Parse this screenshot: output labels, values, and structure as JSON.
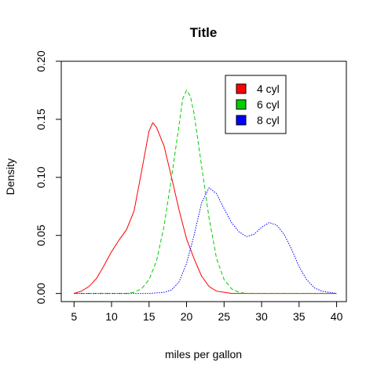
{
  "chart_data": {
    "type": "line",
    "title": "Title",
    "xlabel": "miles per gallon",
    "ylabel": "Density",
    "xlim": [
      3.3,
      41.3
    ],
    "ylim": [
      -0.007,
      0.2
    ],
    "x_ticks": [
      5,
      10,
      15,
      20,
      25,
      30,
      35,
      40
    ],
    "x_tick_labels": [
      "5",
      "10",
      "15",
      "20",
      "25",
      "30",
      "35",
      "40"
    ],
    "y_ticks": [
      0.0,
      0.05,
      0.1,
      0.15,
      0.2
    ],
    "y_tick_labels": [
      "0.00",
      "0.05",
      "0.10",
      "0.15",
      "0.20"
    ],
    "grid": false,
    "legend_position": "top-right",
    "series": [
      {
        "name": "4 cyl",
        "color": "#ff0000",
        "dash": "solid",
        "points": [
          [
            5,
            0
          ],
          [
            6,
            0.002
          ],
          [
            7,
            0.006
          ],
          [
            8,
            0.013
          ],
          [
            9,
            0.024
          ],
          [
            10,
            0.036
          ],
          [
            11,
            0.046
          ],
          [
            12,
            0.055
          ],
          [
            13,
            0.071
          ],
          [
            14,
            0.105
          ],
          [
            15,
            0.14
          ],
          [
            15.5,
            0.147
          ],
          [
            16,
            0.143
          ],
          [
            17,
            0.127
          ],
          [
            18,
            0.1
          ],
          [
            19,
            0.072
          ],
          [
            20,
            0.047
          ],
          [
            21,
            0.03
          ],
          [
            22,
            0.015
          ],
          [
            23,
            0.006
          ],
          [
            24,
            0.002
          ],
          [
            25,
            0.001
          ],
          [
            26,
            0
          ],
          [
            30,
            0
          ],
          [
            35,
            0
          ],
          [
            40,
            0
          ]
        ]
      },
      {
        "name": "6 cyl",
        "color": "#00cd00",
        "dash": "dashed",
        "points": [
          [
            5,
            0
          ],
          [
            10,
            0
          ],
          [
            12,
            0
          ],
          [
            13,
            0.001
          ],
          [
            14,
            0.004
          ],
          [
            15,
            0.012
          ],
          [
            16,
            0.028
          ],
          [
            17,
            0.058
          ],
          [
            18,
            0.1
          ],
          [
            19,
            0.145
          ],
          [
            19.5,
            0.168
          ],
          [
            20,
            0.175
          ],
          [
            20.5,
            0.17
          ],
          [
            21,
            0.155
          ],
          [
            22,
            0.11
          ],
          [
            23,
            0.065
          ],
          [
            24,
            0.03
          ],
          [
            25,
            0.012
          ],
          [
            26,
            0.004
          ],
          [
            27,
            0.001
          ],
          [
            28,
            0
          ],
          [
            40,
            0
          ]
        ]
      },
      {
        "name": "8 cyl",
        "color": "#0000ff",
        "dash": "dotted",
        "points": [
          [
            5,
            0
          ],
          [
            15,
            0
          ],
          [
            17,
            0.001
          ],
          [
            18,
            0.003
          ],
          [
            19,
            0.01
          ],
          [
            20,
            0.026
          ],
          [
            21,
            0.05
          ],
          [
            22,
            0.078
          ],
          [
            23,
            0.091
          ],
          [
            24,
            0.086
          ],
          [
            25,
            0.073
          ],
          [
            26,
            0.061
          ],
          [
            27,
            0.053
          ],
          [
            28,
            0.049
          ],
          [
            29,
            0.051
          ],
          [
            30,
            0.057
          ],
          [
            31,
            0.061
          ],
          [
            32,
            0.059
          ],
          [
            33,
            0.051
          ],
          [
            34,
            0.038
          ],
          [
            35,
            0.023
          ],
          [
            36,
            0.012
          ],
          [
            37,
            0.005
          ],
          [
            38,
            0.002
          ],
          [
            39,
            0.001
          ],
          [
            40,
            0
          ]
        ]
      }
    ]
  }
}
